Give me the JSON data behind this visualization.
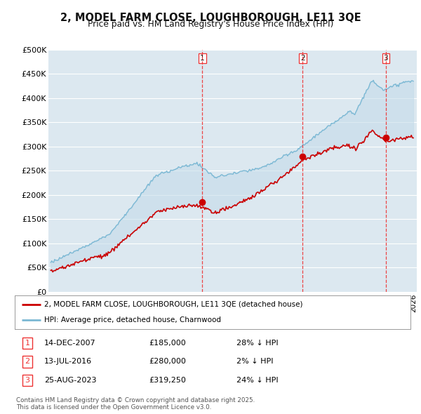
{
  "title": "2, MODEL FARM CLOSE, LOUGHBOROUGH, LE11 3QE",
  "subtitle": "Price paid vs. HM Land Registry's House Price Index (HPI)",
  "ylim": [
    0,
    500000
  ],
  "yticks": [
    0,
    50000,
    100000,
    150000,
    200000,
    250000,
    300000,
    350000,
    400000,
    450000,
    500000
  ],
  "ytick_labels": [
    "£0",
    "£50K",
    "£100K",
    "£150K",
    "£200K",
    "£250K",
    "£300K",
    "£350K",
    "£400K",
    "£450K",
    "£500K"
  ],
  "xlim_start": 1994.8,
  "xlim_end": 2026.3,
  "sale_dates": [
    2007.96,
    2016.54,
    2023.65
  ],
  "sale_prices": [
    185000,
    280000,
    319250
  ],
  "sale_labels": [
    "1",
    "2",
    "3"
  ],
  "legend_line1": "2, MODEL FARM CLOSE, LOUGHBOROUGH, LE11 3QE (detached house)",
  "legend_line2": "HPI: Average price, detached house, Charnwood",
  "table_rows": [
    [
      "1",
      "14-DEC-2007",
      "£185,000",
      "28% ↓ HPI"
    ],
    [
      "2",
      "13-JUL-2016",
      "£280,000",
      "2% ↓ HPI"
    ],
    [
      "3",
      "25-AUG-2023",
      "£319,250",
      "24% ↓ HPI"
    ]
  ],
  "footer": "Contains HM Land Registry data © Crown copyright and database right 2025.\nThis data is licensed under the Open Government Licence v3.0.",
  "hpi_color": "#7bb8d4",
  "price_color": "#cc0000",
  "vline_color": "#ee3333",
  "bg_color": "#dce8f0",
  "grid_color": "#ffffff",
  "fill_color": "#c5dcea"
}
